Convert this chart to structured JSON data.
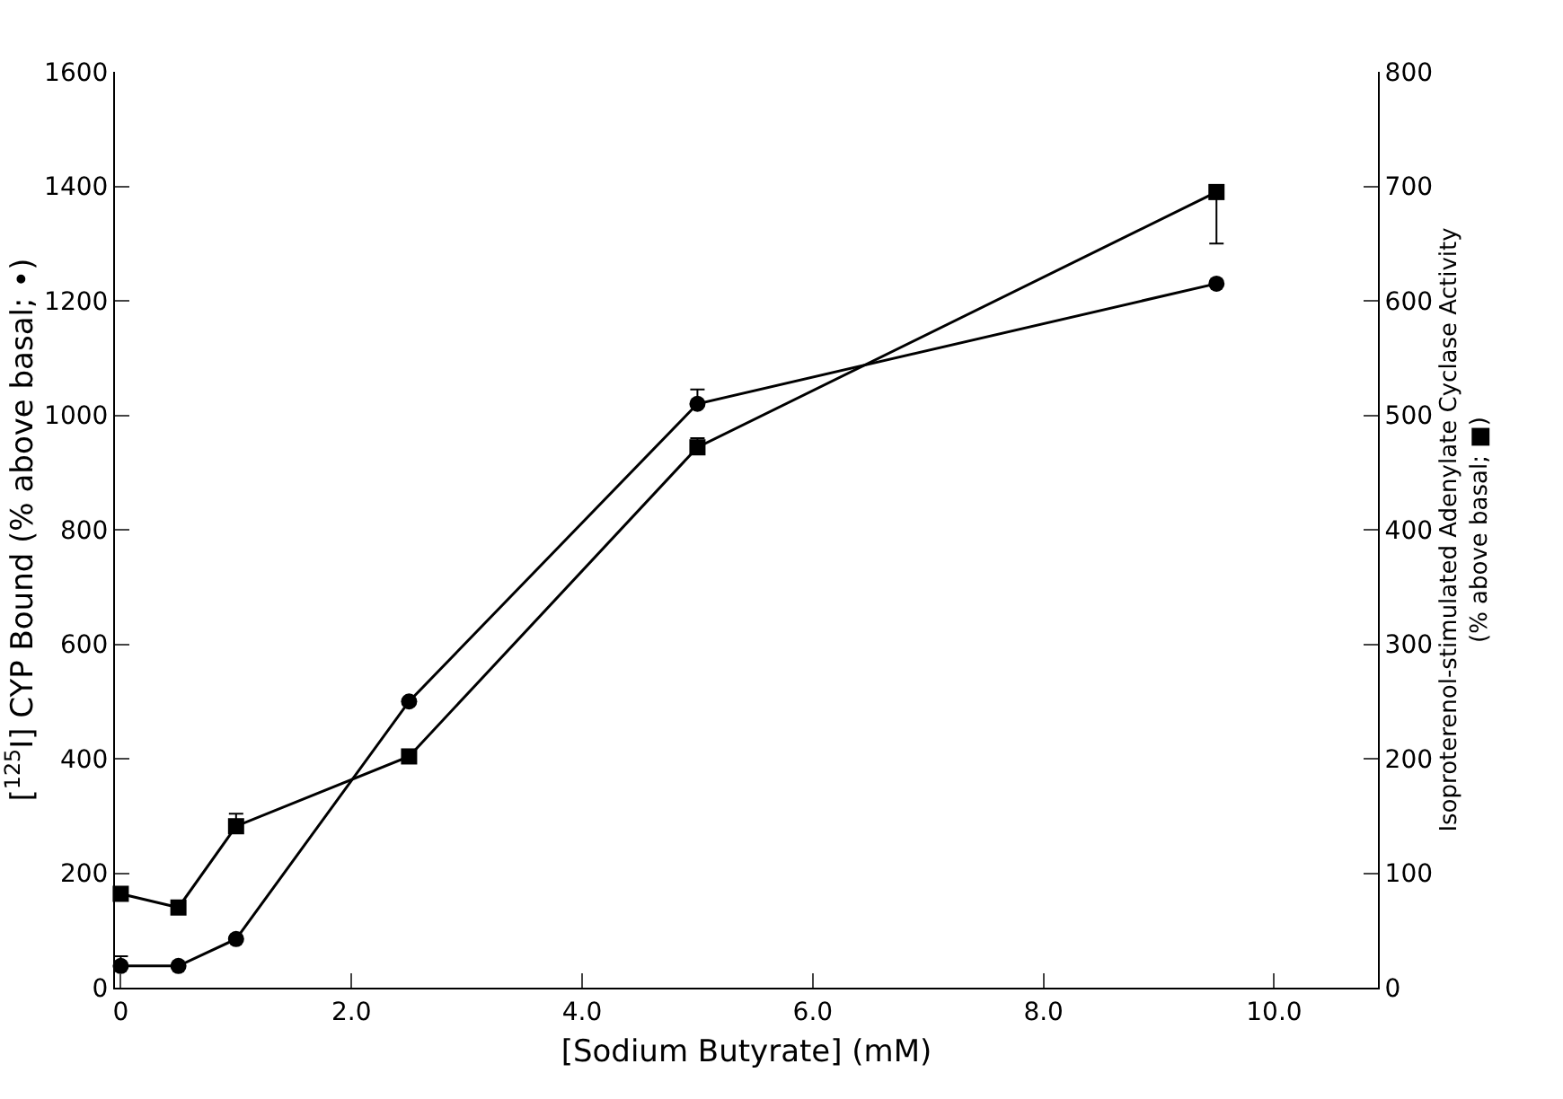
{
  "chart_data": {
    "type": "line",
    "xlabel": "[Sodium Butyrate] (mM)",
    "ylabel": "[$^{125}$I] CYP Bound (% above basal; •)",
    "y2label": "Isoproterenol-stimulated Adenylate Cyclase Activity\n(% above basal; ■)",
    "x": [
      0,
      0.5,
      1.0,
      2.5,
      5.0,
      9.5
    ],
    "series": [
      {
        "color": "#000000",
        "marker": "circle",
        "values": [
          38,
          38,
          85,
          500,
          1020,
          1230
        ],
        "errors": [
          [
            38,
            55
          ],
          null,
          null,
          null,
          [
            1020,
            1045
          ],
          null
        ]
      },
      {
        "color": "#000000",
        "marker": "square",
        "axis": "y2",
        "values": [
          82,
          70,
          141,
          202,
          472,
          695
        ],
        "errors": [
          null,
          null,
          [
            141,
            152
          ],
          null,
          [
            472,
            480
          ],
          [
            650,
            695
          ]
        ]
      }
    ],
    "xlim": [
      -0.05,
      10.9
    ],
    "xticks": [
      0,
      {
        "value": 2,
        "label": "2.0"
      },
      {
        "value": 4,
        "label": "4.0"
      },
      {
        "value": 6,
        "label": "6.0"
      },
      {
        "value": 8,
        "label": "8.0"
      },
      {
        "value": 10,
        "label": "10.0"
      }
    ],
    "ylim": [
      0,
      1600
    ],
    "yticks": [
      0,
      200,
      400,
      600,
      800,
      1000,
      1200,
      1400,
      1600
    ],
    "y2lim": [
      0,
      800
    ],
    "y2ticks": [
      0,
      100,
      200,
      300,
      400,
      500,
      600,
      700,
      800
    ],
    "line_style": "solid"
  }
}
